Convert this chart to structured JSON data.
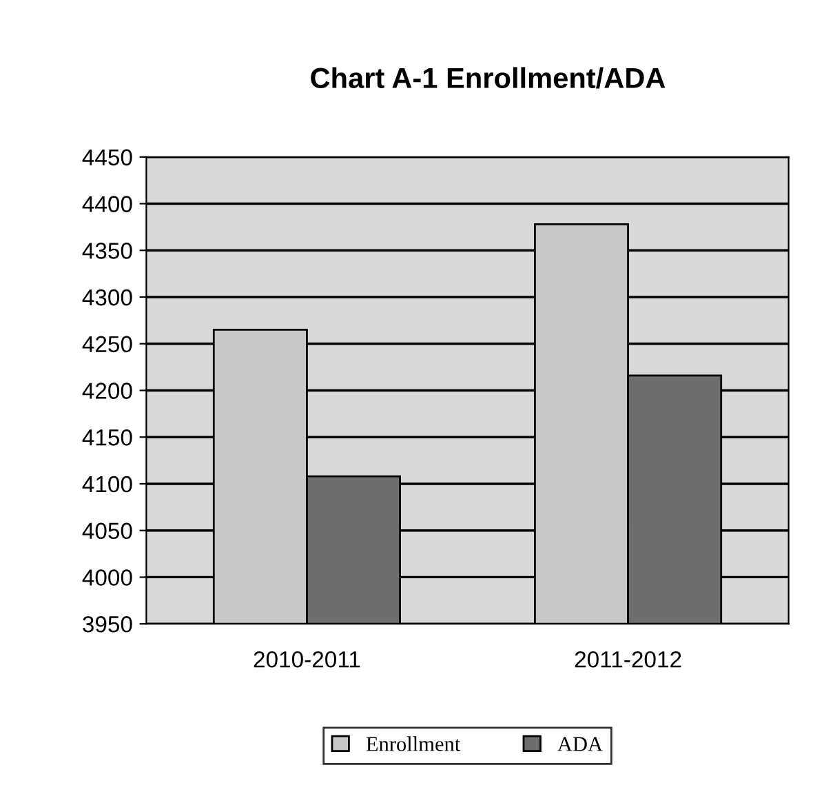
{
  "chart_data": {
    "type": "bar",
    "title": "Chart A-1 Enrollment/ADA",
    "categories": [
      "2010-2011",
      "2011-2012"
    ],
    "series": [
      {
        "name": "Enrollment",
        "color": "#c8c8c8",
        "values": [
          4265,
          4378
        ]
      },
      {
        "name": "ADA",
        "color": "#6e6e6e",
        "values": [
          4108,
          4216
        ]
      }
    ],
    "ylim": [
      3950,
      4450
    ],
    "yticks": [
      3950,
      4000,
      4050,
      4100,
      4150,
      4200,
      4250,
      4300,
      4350,
      4400,
      4450
    ],
    "grid": "y",
    "legend": "bottom"
  }
}
